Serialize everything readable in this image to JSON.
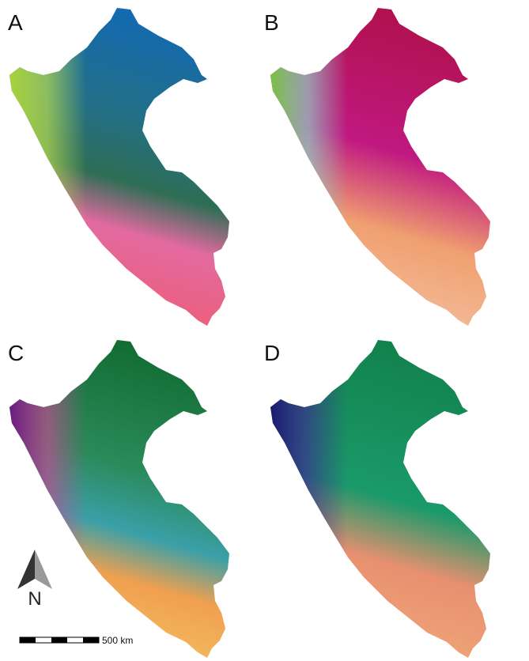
{
  "panels": [
    {
      "label": "A"
    },
    {
      "label": "B"
    },
    {
      "label": "C"
    },
    {
      "label": "D"
    }
  ],
  "north_arrow": {
    "label": "N"
  },
  "scale_bar": {
    "label": "500 km"
  }
}
